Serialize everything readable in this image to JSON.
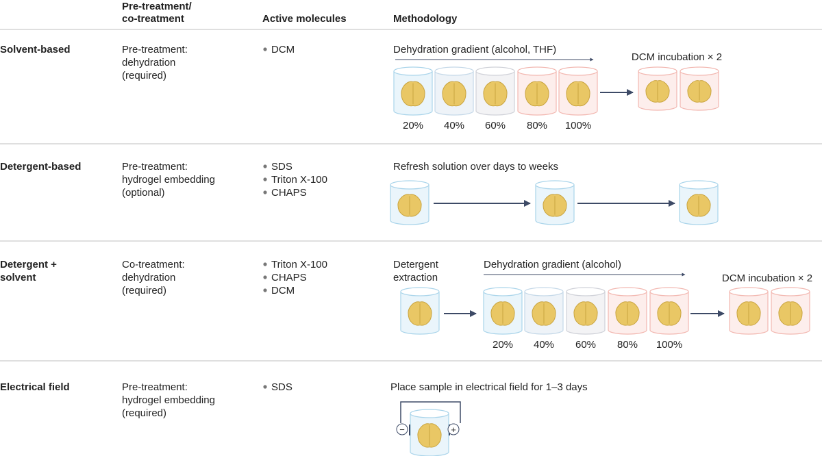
{
  "header": {
    "pretreatment": [
      "Pre-treatment/",
      "co-treatment"
    ],
    "molecules": "Active molecules",
    "methodology": "Methodology"
  },
  "rows": [
    {
      "name": [
        "Solvent-based"
      ],
      "pretreatment": [
        "Pre-treatment:",
        "dehydration",
        "(required)"
      ],
      "molecules": [
        "DCM"
      ],
      "methodology": {
        "gradient": "Dehydration gradient (alcohol, THF)",
        "percentages": [
          "20%",
          "40%",
          "60%",
          "80%",
          "100%"
        ],
        "incubation": "DCM incubation × 2"
      }
    },
    {
      "name": [
        "Detergent-based"
      ],
      "pretreatment": [
        "Pre-treatment:",
        "hydrogel embedding",
        "(optional)"
      ],
      "molecules": [
        "SDS",
        "Triton X-100",
        "CHAPS"
      ],
      "methodology": {
        "caption": "Refresh solution over days to weeks"
      }
    },
    {
      "name": [
        "Detergent +",
        "solvent"
      ],
      "pretreatment": [
        "Co-treatment:",
        "dehydration",
        "(required)"
      ],
      "molecules": [
        "Triton X-100",
        "CHAPS",
        "DCM"
      ],
      "methodology": {
        "extraction": [
          "Detergent",
          "extraction"
        ],
        "gradient": "Dehydration gradient (alcohol)",
        "percentages": [
          "20%",
          "40%",
          "60%",
          "80%",
          "100%"
        ],
        "incubation": "DCM incubation × 2"
      }
    },
    {
      "name": [
        "Electrical field"
      ],
      "pretreatment": [
        "Pre-treatment:",
        "hydrogel embedding",
        "(required)"
      ],
      "molecules": [
        "SDS"
      ],
      "methodology": {
        "caption": "Place sample in electrical field for 1–3 days",
        "electrodes": [
          "−",
          "+"
        ]
      }
    }
  ]
}
